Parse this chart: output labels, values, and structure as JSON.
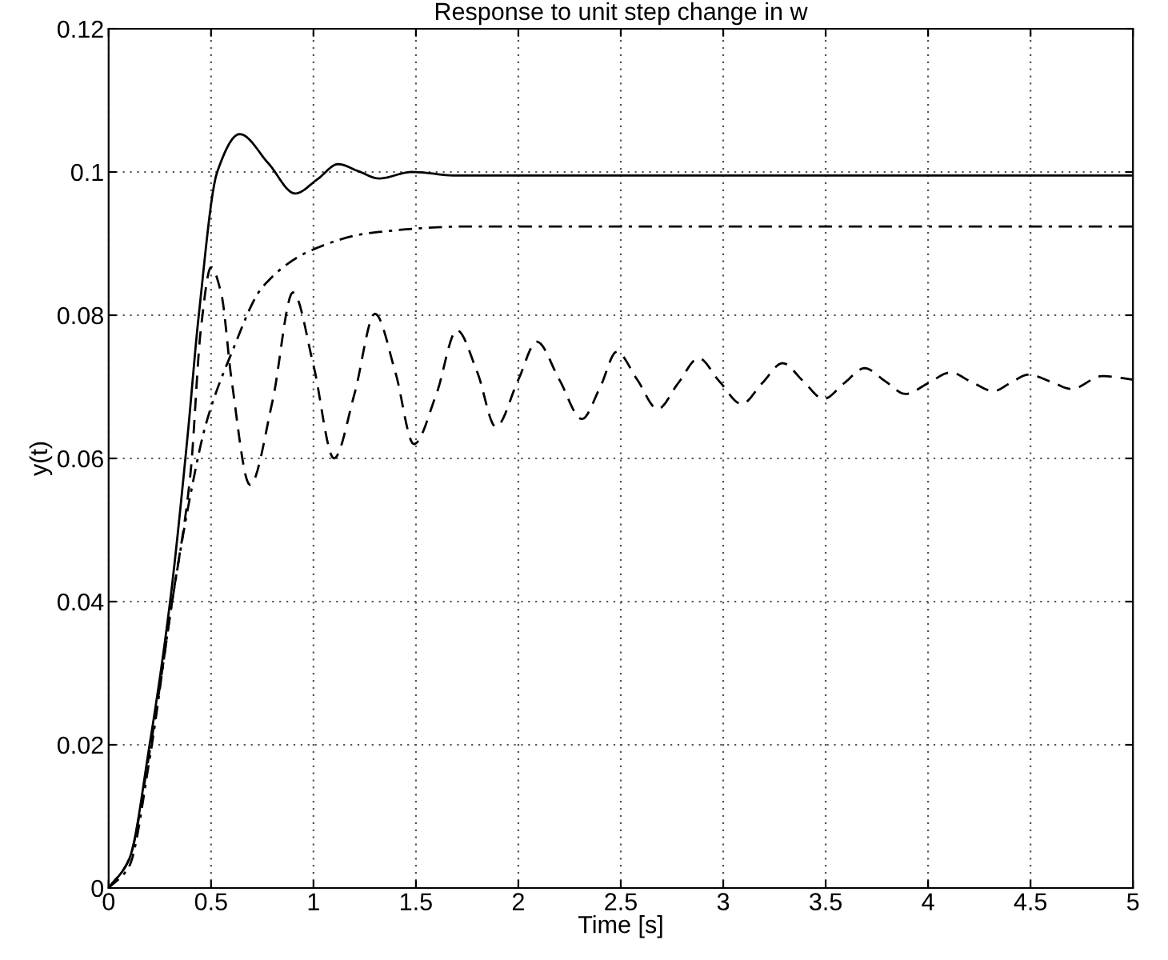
{
  "chart_data": {
    "type": "line",
    "title": "Response to unit step change in w",
    "xlabel": "Time [s]",
    "ylabel": "y(t)",
    "xlim": [
      0,
      5
    ],
    "ylim": [
      0,
      0.12
    ],
    "xticks": [
      0,
      0.5,
      1,
      1.5,
      2,
      2.5,
      3,
      3.5,
      4,
      4.5,
      5
    ],
    "yticks": [
      0,
      0.02,
      0.04,
      0.06,
      0.08,
      0.1,
      0.12
    ],
    "grid": true,
    "legend": false,
    "series": [
      {
        "color": "#000000",
        "line_style": "solid",
        "x": [
          0,
          0.1,
          0.2,
          0.3,
          0.385,
          0.44,
          0.53,
          0.64,
          0.78,
          0.91,
          1.02,
          1.12,
          1.22,
          1.32,
          1.48,
          1.7,
          2.0,
          3.0,
          4.0,
          5.0
        ],
        "values": [
          0,
          0.004,
          0.02,
          0.04,
          0.063,
          0.08,
          0.1,
          0.1053,
          0.1012,
          0.097,
          0.099,
          0.1011,
          0.1001,
          0.0991,
          0.1,
          0.0995,
          0.0995,
          0.0995,
          0.0995,
          0.0995
        ]
      },
      {
        "color": "#000000",
        "line_style": "dashdot",
        "x": [
          0,
          0.1,
          0.2,
          0.31,
          0.4,
          0.475,
          0.6,
          0.75,
          1.0,
          1.28,
          1.76,
          2.5,
          3.5,
          5.0
        ],
        "values": [
          0,
          0.003,
          0.018,
          0.04,
          0.055,
          0.0648,
          0.0747,
          0.0839,
          0.0892,
          0.0915,
          0.0924,
          0.0924,
          0.0924,
          0.0924
        ]
      },
      {
        "color": "#000000",
        "line_style": "dashed",
        "x": [
          0,
          0.1,
          0.2,
          0.31,
          0.4,
          0.45,
          0.5,
          0.55,
          0.6,
          0.69,
          0.8,
          0.9,
          1.0,
          1.1,
          1.2,
          1.3,
          1.4,
          1.49,
          1.6,
          1.7,
          1.8,
          1.89,
          2.0,
          2.09,
          2.2,
          2.31,
          2.4,
          2.48,
          2.58,
          2.68,
          2.78,
          2.88,
          2.98,
          3.09,
          3.19,
          3.29,
          3.39,
          3.49,
          3.59,
          3.69,
          3.79,
          3.89,
          4.0,
          4.11,
          4.21,
          4.32,
          4.4,
          4.49,
          4.6,
          4.7,
          4.85,
          5.0
        ],
        "values": [
          0,
          0.004,
          0.019,
          0.04,
          0.058,
          0.078,
          0.0867,
          0.083,
          0.071,
          0.0563,
          0.068,
          0.0832,
          0.073,
          0.06,
          0.069,
          0.0802,
          0.072,
          0.062,
          0.069,
          0.0779,
          0.072,
          0.0644,
          0.071,
          0.0763,
          0.071,
          0.0655,
          0.07,
          0.0749,
          0.071,
          0.0669,
          0.0705,
          0.074,
          0.0708,
          0.0676,
          0.0705,
          0.0733,
          0.0708,
          0.0683,
          0.0705,
          0.0726,
          0.0708,
          0.069,
          0.0705,
          0.072,
          0.0707,
          0.0694,
          0.0705,
          0.0717,
          0.0707,
          0.0697,
          0.0715,
          0.071
        ]
      }
    ]
  }
}
